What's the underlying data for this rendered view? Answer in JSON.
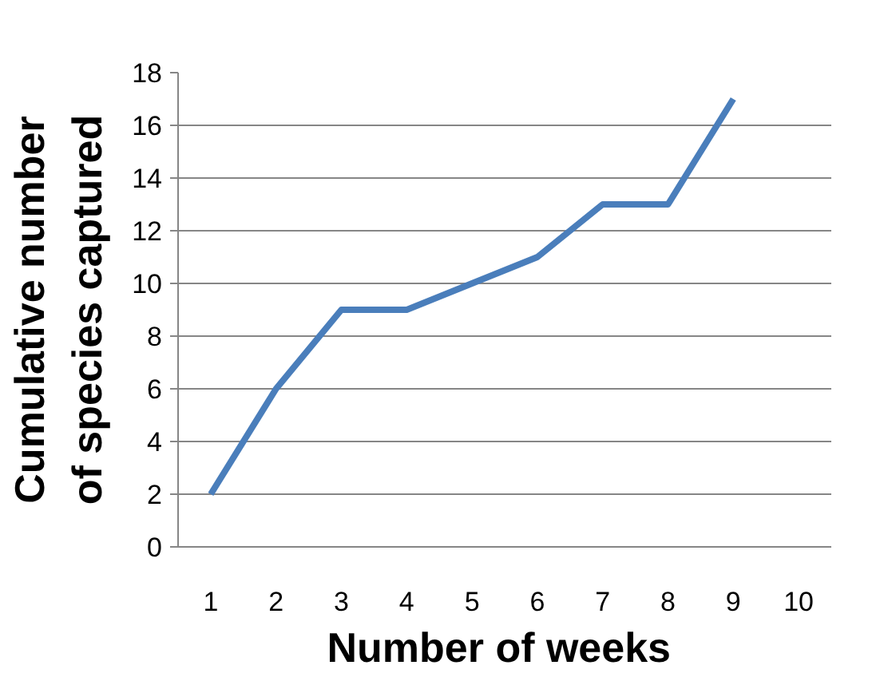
{
  "chart_data": {
    "type": "line",
    "xlabel": "Number  of weeks",
    "ylabel": "Cumulative number\nof species captured",
    "categories": [
      "1",
      "2",
      "3",
      "4",
      "5",
      "6",
      "7",
      "8",
      "9",
      "10"
    ],
    "series": [
      {
        "color": "#4a7ebb",
        "values": [
          2,
          6,
          9,
          9,
          10,
          11,
          13,
          13,
          17,
          null
        ]
      }
    ],
    "ylim": [
      0,
      18
    ],
    "yticks": [
      0,
      2,
      4,
      6,
      8,
      10,
      12,
      14,
      16,
      18
    ],
    "grid": "y",
    "marker": "none",
    "line_style": "solid"
  }
}
